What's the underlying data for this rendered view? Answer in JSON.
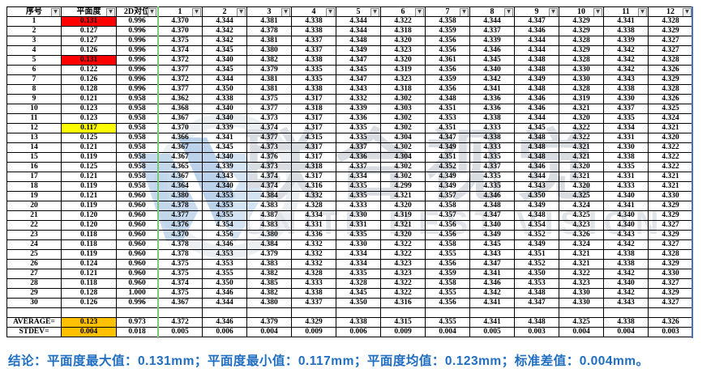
{
  "colors": {
    "red": "#ff0000",
    "yellow": "#ffff00",
    "orange": "#ffc000",
    "boundary_green": "#79c97d",
    "pagebreak_blue": "#4472c4",
    "conclusion_blue": "#1f6ec1"
  },
  "icons": {
    "filter_arrow": "▼"
  },
  "watermark": {
    "cjk_text": "联合视觉",
    "latin_text": "UNITE BEST VISION"
  },
  "table": {
    "columns": [
      "序号",
      "平面度",
      "2D对位",
      "1",
      "2",
      "3",
      "4",
      "5",
      "6",
      "7",
      "8",
      "9",
      "10",
      "11",
      "12"
    ],
    "rows": [
      [
        "1",
        "0.131",
        "0.996",
        "4.370",
        "4.344",
        "4.381",
        "4.338",
        "4.344",
        "4.322",
        "4.358",
        "4.344",
        "4.347",
        "4.329",
        "4.341",
        "4.328"
      ],
      [
        "2",
        "0.127",
        "0.996",
        "4.370",
        "4.342",
        "4.378",
        "4.338",
        "4.344",
        "4.318",
        "4.359",
        "4.337",
        "4.346",
        "4.329",
        "4.338",
        "4.329"
      ],
      [
        "3",
        "0.127",
        "0.996",
        "4.375",
        "4.342",
        "4.381",
        "4.337",
        "4.348",
        "4.320",
        "4.356",
        "4.339",
        "4.344",
        "4.328",
        "4.339",
        "4.327"
      ],
      [
        "4",
        "0.126",
        "0.996",
        "4.374",
        "4.345",
        "4.380",
        "4.337",
        "4.349",
        "4.323",
        "4.356",
        "4.346",
        "4.344",
        "4.329",
        "4.342",
        "4.327"
      ],
      [
        "5",
        "0.131",
        "0.996",
        "4.372",
        "4.340",
        "4.382",
        "4.338",
        "4.347",
        "4.320",
        "4.361",
        "4.345",
        "4.348",
        "4.328",
        "4.342",
        "4.328"
      ],
      [
        "6",
        "0.122",
        "0.996",
        "4.377",
        "4.345",
        "4.379",
        "4.335",
        "4.345",
        "4.319",
        "4.356",
        "4.340",
        "4.348",
        "4.330",
        "4.342",
        "4.326"
      ],
      [
        "7",
        "0.126",
        "0.996",
        "4.372",
        "4.344",
        "4.381",
        "4.335",
        "4.347",
        "4.323",
        "4.359",
        "4.342",
        "4.349",
        "4.330",
        "4.343",
        "4.329"
      ],
      [
        "8",
        "0.128",
        "0.996",
        "4.377",
        "4.350",
        "4.381",
        "4.338",
        "4.343",
        "4.318",
        "4.356",
        "4.341",
        "4.348",
        "4.328",
        "4.338",
        "4.328"
      ],
      [
        "9",
        "0.121",
        "0.958",
        "4.362",
        "4.338",
        "4.375",
        "4.317",
        "4.332",
        "4.302",
        "4.348",
        "4.336",
        "4.346",
        "4.319",
        "4.330",
        "4.326"
      ],
      [
        "10",
        "0.123",
        "0.958",
        "4.368",
        "4.340",
        "4.377",
        "4.318",
        "4.339",
        "4.303",
        "4.351",
        "4.336",
        "4.346",
        "4.321",
        "4.337",
        "4.325"
      ],
      [
        "11",
        "0.123",
        "0.958",
        "4.367",
        "4.340",
        "4.373",
        "4.317",
        "4.336",
        "4.302",
        "4.353",
        "4.338",
        "4.344",
        "4.320",
        "4.335",
        "4.324"
      ],
      [
        "12",
        "0.117",
        "0.958",
        "4.370",
        "4.339",
        "4.374",
        "4.317",
        "4.335",
        "4.302",
        "4.351",
        "4.333",
        "4.345",
        "4.322",
        "4.334",
        "4.321"
      ],
      [
        "13",
        "0.125",
        "0.958",
        "4.366",
        "4.341",
        "4.377",
        "4.315",
        "4.335",
        "4.304",
        "4.347",
        "4.338",
        "4.348",
        "4.322",
        "4.331",
        "4.320"
      ],
      [
        "14",
        "0.121",
        "0.958",
        "4.367",
        "4.345",
        "4.373",
        "4.317",
        "4.337",
        "4.302",
        "4.349",
        "4.333",
        "4.348",
        "4.321",
        "4.330",
        "4.322"
      ],
      [
        "15",
        "0.119",
        "0.958",
        "4.367",
        "4.340",
        "4.376",
        "4.317",
        "4.336",
        "4.304",
        "4.351",
        "4.335",
        "4.348",
        "4.321",
        "4.338",
        "4.322"
      ],
      [
        "16",
        "0.125",
        "0.958",
        "4.365",
        "4.339",
        "4.373",
        "4.318",
        "4.337",
        "4.302",
        "4.352",
        "4.337",
        "4.346",
        "4.320",
        "4.335",
        "4.322"
      ],
      [
        "17",
        "0.121",
        "0.958",
        "4.367",
        "4.343",
        "4.374",
        "4.317",
        "4.334",
        "4.302",
        "4.349",
        "4.335",
        "4.344",
        "4.321",
        "4.331",
        "4.321"
      ],
      [
        "18",
        "0.119",
        "0.958",
        "4.364",
        "4.340",
        "4.374",
        "4.316",
        "4.335",
        "4.299",
        "4.349",
        "4.335",
        "4.343",
        "4.320",
        "4.333",
        "4.321"
      ],
      [
        "19",
        "0.121",
        "0.960",
        "4.380",
        "4.353",
        "4.384",
        "4.332",
        "4.335",
        "4.321",
        "4.357",
        "4.346",
        "4.350",
        "4.325",
        "4.340",
        "4.330"
      ],
      [
        "20",
        "0.119",
        "0.960",
        "4.378",
        "4.353",
        "4.383",
        "4.328",
        "4.333",
        "4.320",
        "4.358",
        "4.348",
        "4.349",
        "4.324",
        "4.341",
        "4.329"
      ],
      [
        "21",
        "0.120",
        "0.960",
        "4.377",
        "4.355",
        "4.387",
        "4.334",
        "4.330",
        "4.319",
        "4.357",
        "4.347",
        "4.348",
        "4.325",
        "4.340",
        "4.329"
      ],
      [
        "22",
        "0.120",
        "0.960",
        "4.376",
        "4.354",
        "4.383",
        "4.331",
        "4.331",
        "4.321",
        "4.356",
        "4.340",
        "4.354",
        "4.323",
        "4.340",
        "4.327"
      ],
      [
        "23",
        "0.118",
        "0.960",
        "4.370",
        "4.356",
        "4.380",
        "4.336",
        "4.335",
        "4.320",
        "4.356",
        "4.349",
        "4.352",
        "4.326",
        "4.343",
        "4.329"
      ],
      [
        "24",
        "0.118",
        "0.960",
        "4.378",
        "4.346",
        "4.384",
        "4.332",
        "4.330",
        "4.322",
        "4.358",
        "4.345",
        "4.349",
        "4.324",
        "4.342",
        "4.327"
      ],
      [
        "25",
        "0.119",
        "0.960",
        "4.378",
        "4.353",
        "4.379",
        "4.332",
        "4.334",
        "4.322",
        "4.355",
        "4.343",
        "4.351",
        "4.321",
        "4.338",
        "4.328"
      ],
      [
        "26",
        "0.124",
        "0.960",
        "4.375",
        "4.353",
        "4.383",
        "4.332",
        "4.334",
        "4.323",
        "4.356",
        "4.347",
        "4.352",
        "4.321",
        "4.338",
        "4.329"
      ],
      [
        "27",
        "0.121",
        "0.960",
        "4.375",
        "4.355",
        "4.382",
        "4.328",
        "4.335",
        "4.323",
        "4.359",
        "4.341",
        "4.350",
        "4.322",
        "4.342",
        "4.330"
      ],
      [
        "28",
        "0.118",
        "0.960",
        "4.374",
        "4.350",
        "4.385",
        "4.333",
        "4.328",
        "4.322",
        "4.358",
        "4.346",
        "4.353",
        "4.323",
        "4.340",
        "4.327"
      ],
      [
        "29",
        "0.128",
        "1.000",
        "4.375",
        "4.346",
        "4.382",
        "4.338",
        "4.345",
        "4.322",
        "4.355",
        "4.342",
        "4.348",
        "4.330",
        "4.342",
        "4.329"
      ],
      [
        "30",
        "0.126",
        "0.996",
        "4.367",
        "4.344",
        "4.380",
        "4.337",
        "4.350",
        "4.316",
        "4.356",
        "4.341",
        "4.347",
        "4.330",
        "4.343",
        "4.327"
      ]
    ],
    "highlights": [
      {
        "row": 0,
        "col": 1,
        "color": "red"
      },
      {
        "row": 4,
        "col": 1,
        "color": "red"
      },
      {
        "row": 11,
        "col": 1,
        "color": "yellow"
      }
    ],
    "summary": [
      {
        "id": "average",
        "cells": [
          "AVERAGE=",
          "0.123",
          "0.973",
          "4.372",
          "4.346",
          "4.379",
          "4.329",
          "4.338",
          "4.315",
          "4.355",
          "4.341",
          "4.348",
          "4.325",
          "4.338",
          "4.326"
        ],
        "highlight_col": 1,
        "highlight_color": "orange"
      },
      {
        "id": "stdev",
        "cells": [
          "STDEV=",
          "0.004",
          "0.018",
          "0.005",
          "0.006",
          "0.004",
          "0.009",
          "0.006",
          "0.009",
          "0.004",
          "0.005",
          "0.003",
          "0.004",
          "0.004",
          "0.003"
        ],
        "highlight_col": 1,
        "highlight_color": "orange"
      }
    ]
  },
  "conclusion": "结论：平面度最大值：0.131mm；平面度最小值：0.117mm；平面度均值：0.123mm；标准差值：0.004mm。"
}
